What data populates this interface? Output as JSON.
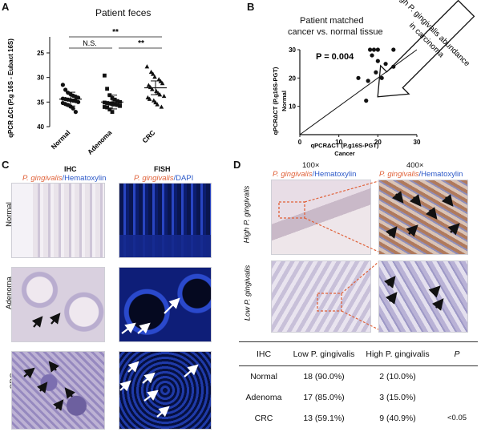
{
  "panel_letters": [
    "A",
    "B",
    "C",
    "D"
  ],
  "panel_a": {
    "title": "Patient feces",
    "ylabel": "qPCR ΔCt (P.g 16S - Eubact 16S)",
    "yticks": [
      "25",
      "30",
      "35",
      "40"
    ],
    "groups": [
      "Normal",
      "Adenoma",
      "CRC"
    ],
    "sig_ns": "N.S.",
    "sig_1": "**",
    "sig_2": "**"
  },
  "panel_b": {
    "title_l1": "Patient matched",
    "title_l2": "cancer vs. normal tissue",
    "arrow_l1": "High P. gingivalis abundance",
    "arrow_l2": "in carcinoma",
    "pvalue": "P = 0.004",
    "ylabel_l1": "qPCRΔCT (P.g16S-PGT)",
    "ylabel_l2": "Normal",
    "xlabel_l1": "qPCRΔCT (P.g16S-PGT)",
    "xlabel_l2": "Cancer",
    "ticks": [
      "0",
      "10",
      "20",
      "30"
    ]
  },
  "panel_c": {
    "col1_title": "IHC",
    "col1_sub_a": "P. gingivalis",
    "col1_sub_b": "/Hematoxylin",
    "col2_title": "FISH",
    "col2_sub_a": "P. gingivalis",
    "col2_sub_b": "/DAPI",
    "rows": [
      "Normal",
      "Adenoma",
      "CRC"
    ]
  },
  "panel_d": {
    "col1_title": "100×",
    "col2_title": "400×",
    "sub_a": "P. gingivalis",
    "sub_b": "/Hematoxylin",
    "row1": "High P. gingivalis",
    "row2": "Low P. gingivalis",
    "table": {
      "headers": [
        "IHC",
        "Low P. gingivalis",
        "High P. gingivalis",
        "P"
      ],
      "rows": [
        [
          "Normal",
          "18 (90.0%)",
          "2 (10.0%)",
          ""
        ],
        [
          "Adenoma",
          "17 (85.0%)",
          "3 (15.0%)",
          ""
        ],
        [
          "CRC",
          "13 (59.1%)",
          "9 (40.9%)",
          "<0.05"
        ]
      ]
    }
  },
  "chart_data": [
    {
      "type": "scatter",
      "title": "Patient feces",
      "ylabel": "qPCR ΔCt (P.g 16S - Eubact 16S)",
      "categories": [
        "Normal",
        "Adenoma",
        "CRC"
      ],
      "ylim": [
        40,
        25
      ],
      "y_inverted": true,
      "series": [
        {
          "name": "Normal",
          "marker": "circle",
          "values": [
            31.5,
            32.5,
            33.1,
            33.4,
            33.7,
            33.9,
            34.1,
            34.3,
            34.4,
            34.5,
            34.6,
            34.7,
            34.8,
            35.0,
            35.2,
            35.4,
            35.6,
            35.9,
            36.3,
            37.0
          ]
        },
        {
          "name": "Adenoma",
          "marker": "square",
          "values": [
            29.6,
            32.3,
            33.6,
            34.2,
            34.5,
            34.8,
            35.0,
            35.1,
            35.2,
            35.3,
            35.4,
            35.5,
            35.6,
            35.8,
            36.0,
            36.1,
            36.5,
            37.0
          ]
        },
        {
          "name": "CRC",
          "marker": "triangle",
          "values": [
            27.8,
            28.9,
            29.3,
            29.9,
            30.4,
            30.8,
            31.2,
            31.6,
            32.0,
            32.4,
            32.8,
            33.2,
            33.5,
            33.8,
            34.1,
            34.4,
            34.7,
            35.1,
            35.5,
            36.0
          ]
        }
      ],
      "means": [
        34.4,
        35.0,
        32.1
      ],
      "annotations": [
        "N.S.",
        "**",
        "**"
      ]
    },
    {
      "type": "scatter",
      "title": "Patient matched cancer vs. normal tissue",
      "xlabel": "qPCRΔCT (P.g16S-PGT) Cancer",
      "ylabel": "qPCRΔCT (P.g16S-PGT) Normal",
      "xlim": [
        0,
        30
      ],
      "ylim": [
        0,
        30
      ],
      "identity_line": true,
      "annotation": "P = 0.004",
      "x": [
        15,
        17,
        18,
        19,
        20,
        20,
        21,
        22,
        24,
        24,
        18.5,
        19.5,
        17.5
      ],
      "y": [
        20,
        12,
        30,
        30,
        30,
        26,
        20,
        25,
        30,
        24,
        28,
        22,
        19
      ]
    }
  ],
  "colors": {
    "accent_orange": "#e0623a",
    "accent_blue": "#2b58c8",
    "arrow_fill": "#ffffff",
    "dapi_blue": "#1f3aa8"
  }
}
